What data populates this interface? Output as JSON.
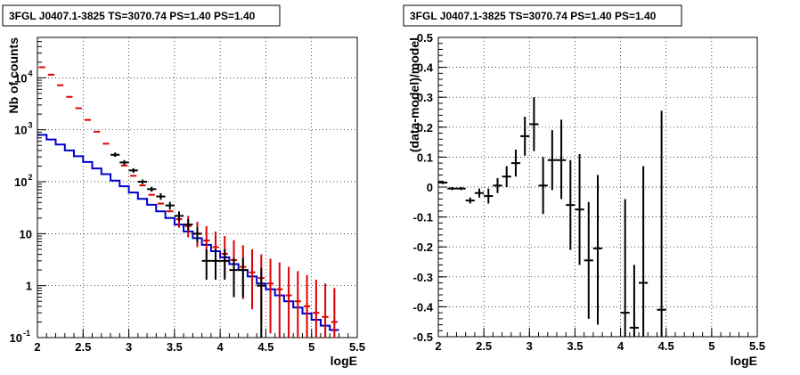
{
  "chart_data": [
    {
      "type": "histogram",
      "title": "3FGL J0407.1-3825 TS=3070.74 PS=1.40 PS=1.40",
      "xlabel": "logE",
      "ylabel": "Nb of counts",
      "xlim": [
        2,
        5.5
      ],
      "ylim": [
        0.1,
        60000
      ],
      "yscale": "log",
      "grid": true,
      "x_ticks": [
        "2",
        "2.5",
        "3",
        "3.5",
        "4",
        "4.5",
        "5",
        "5.5"
      ],
      "y_ticks": [
        {
          "value": 0.1,
          "label": "10",
          "exp": "-1"
        },
        {
          "value": 1,
          "label": "1",
          "exp": ""
        },
        {
          "value": 10,
          "label": "10",
          "exp": ""
        },
        {
          "value": 100,
          "label": "10",
          "exp": "2"
        },
        {
          "value": 1000,
          "label": "10",
          "exp": "3"
        },
        {
          "value": 10000,
          "label": "10",
          "exp": "4"
        }
      ],
      "bin_edges": [
        2.0,
        2.1,
        2.2,
        2.3,
        2.4,
        2.5,
        2.6,
        2.7,
        2.8,
        2.9,
        3.0,
        3.1,
        3.2,
        3.3,
        3.4,
        3.5,
        3.6,
        3.7,
        3.8,
        3.9,
        4.0,
        4.1,
        4.2,
        4.3,
        4.4,
        4.5,
        4.6,
        4.7,
        4.8,
        4.9,
        5.0,
        5.1,
        5.2,
        5.3
      ],
      "series": [
        {
          "color": "#0000cc",
          "style": "step",
          "values": [
            800,
            650,
            520,
            400,
            310,
            240,
            180,
            140,
            105,
            82,
            62,
            47,
            36,
            27,
            20,
            15,
            11,
            8.2,
            6.1,
            4.6,
            3.5,
            2.6,
            2.0,
            1.5,
            1.1,
            0.85,
            0.65,
            0.5,
            0.38,
            0.29,
            0.22,
            0.17,
            0.14
          ]
        },
        {
          "color": "#dd0000",
          "style": "errorbar",
          "x": [
            2.05,
            2.15,
            2.25,
            2.35,
            2.45,
            2.55,
            2.65,
            2.75,
            2.85,
            2.95,
            3.05,
            3.15,
            3.25,
            3.35,
            3.45,
            3.55,
            3.65,
            3.75,
            3.85,
            3.95,
            4.05,
            4.15,
            4.25,
            4.35,
            4.45,
            4.55,
            4.65,
            4.75,
            4.85,
            4.95,
            5.05,
            5.15,
            5.25
          ],
          "y": [
            16000,
            11500,
            7200,
            4300,
            2600,
            1550,
            920,
            540,
            330,
            205,
            130,
            85,
            56,
            38,
            27,
            19,
            14,
            10,
            7.4,
            5.5,
            4.1,
            3.1,
            2.3,
            1.8,
            1.4,
            1.1,
            0.85,
            0.65,
            0.5,
            0.4,
            0.3,
            0.25,
            0.2
          ],
          "y_low": [
            null,
            null,
            null,
            null,
            null,
            null,
            null,
            null,
            null,
            null,
            null,
            null,
            null,
            null,
            null,
            13,
            8.5,
            5.5,
            3.5,
            2.3,
            1.5,
            0.9,
            0.55,
            0.35,
            0.2,
            0.12,
            0.1,
            0.1,
            0.1,
            0.1,
            0.1,
            0.1,
            0.1
          ],
          "y_high": [
            null,
            null,
            null,
            null,
            null,
            null,
            null,
            null,
            null,
            null,
            null,
            null,
            null,
            null,
            null,
            27,
            22,
            17,
            14,
            11,
            9,
            7.5,
            6,
            5,
            4,
            3.3,
            2.8,
            2.3,
            1.9,
            1.6,
            1.3,
            1.1,
            0.9
          ]
        },
        {
          "color": "#000000",
          "style": "errorbar",
          "x": [
            2.85,
            2.95,
            3.05,
            3.15,
            3.25,
            3.35,
            3.45,
            3.55,
            3.65,
            3.75,
            3.85,
            3.95,
            4.05,
            4.15,
            4.25,
            4.45
          ],
          "y": [
            330,
            235,
            165,
            100,
            72,
            52,
            35,
            22,
            15,
            10,
            3.0,
            3.0,
            3.0,
            2.0,
            2.0,
            1.0
          ],
          "y_low": [
            300,
            212,
            148,
            90,
            64,
            45,
            29,
            17.5,
            11.5,
            6.8,
            1.3,
            1.3,
            1.3,
            0.6,
            0.6,
            0.1
          ],
          "y_high": [
            365,
            260,
            182,
            110,
            80,
            60,
            41,
            26.5,
            19,
            13.5,
            5.0,
            5.0,
            5.0,
            3.4,
            3.4,
            2.2
          ],
          "x_err": [
            0.05,
            0.05,
            0.05,
            0.05,
            0.05,
            0.05,
            0.05,
            0.05,
            0.05,
            0.05,
            0.05,
            0.05,
            0.05,
            0.05,
            0.05,
            0.05
          ]
        }
      ]
    },
    {
      "type": "scatter",
      "title": "3FGL J0407.1-3825 TS=3070.74 PS=1.40 PS=1.40",
      "xlabel": "logE",
      "ylabel": "(data-model)/model",
      "xlim": [
        2,
        5.5
      ],
      "ylim": [
        -0.5,
        0.5
      ],
      "grid": true,
      "x_ticks": [
        "2",
        "2.5",
        "3",
        "3.5",
        "4",
        "4.5",
        "5",
        "5.5"
      ],
      "y_ticks": [
        "-0.5",
        "-0.4",
        "-0.3",
        "-0.2",
        "-0.1",
        "0",
        "0.1",
        "0.2",
        "0.3",
        "0.4",
        "0.5"
      ],
      "series": [
        {
          "color": "#000000",
          "x": [
            2.05,
            2.15,
            2.25,
            2.35,
            2.45,
            2.55,
            2.65,
            2.75,
            2.85,
            2.95,
            3.05,
            3.15,
            3.25,
            3.35,
            3.45,
            3.55,
            3.65,
            3.75,
            4.05,
            4.15,
            4.25,
            4.45
          ],
          "y": [
            0.015,
            -0.005,
            -0.005,
            -0.045,
            -0.02,
            -0.03,
            0.005,
            0.035,
            0.08,
            0.17,
            0.21,
            0.005,
            0.09,
            0.09,
            -0.06,
            -0.075,
            -0.245,
            -0.205,
            -0.42,
            -0.47,
            -0.32,
            -0.41
          ],
          "y_low": [
            0.01,
            -0.01,
            -0.01,
            -0.055,
            -0.035,
            -0.055,
            -0.02,
            0.0,
            0.035,
            0.105,
            0.12,
            -0.09,
            -0.01,
            -0.04,
            -0.21,
            -0.26,
            -0.44,
            -0.46,
            -0.5,
            -0.5,
            -0.5,
            -0.5
          ],
          "y_high": [
            0.02,
            0.0,
            0.0,
            -0.035,
            -0.005,
            -0.005,
            0.03,
            0.07,
            0.125,
            0.235,
            0.3,
            0.1,
            0.19,
            0.225,
            0.09,
            0.11,
            -0.05,
            0.04,
            -0.04,
            -0.26,
            0.07,
            0.255
          ],
          "x_err": [
            0.05,
            0.05,
            0.05,
            0.05,
            0.05,
            0.05,
            0.05,
            0.05,
            0.05,
            0.05,
            0.05,
            0.05,
            0.05,
            0.05,
            0.05,
            0.05,
            0.05,
            0.05,
            0.05,
            0.05,
            0.05,
            0.05
          ]
        }
      ]
    }
  ]
}
